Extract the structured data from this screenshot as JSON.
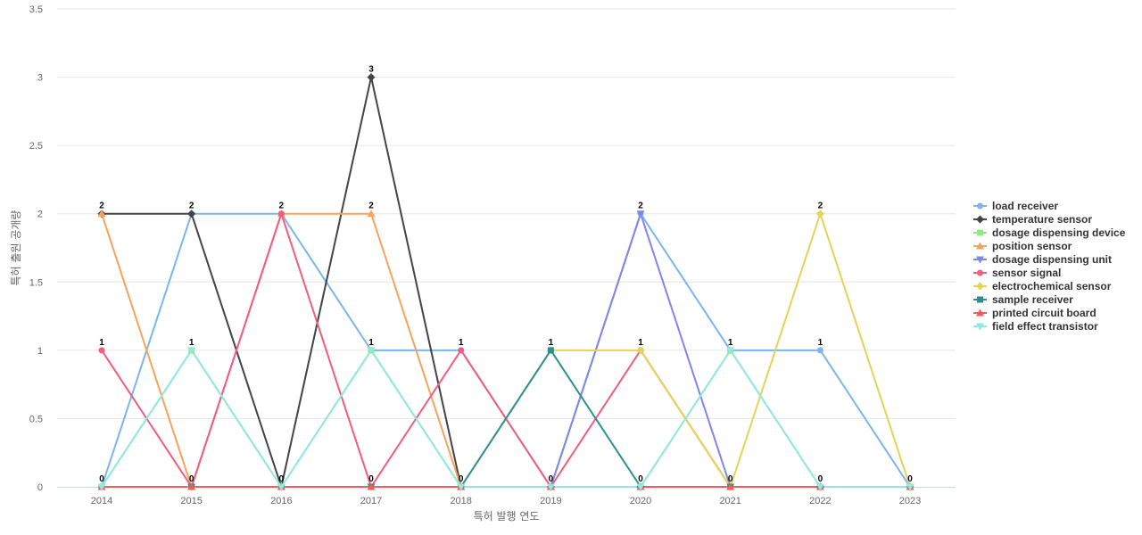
{
  "chart_data": {
    "type": "line",
    "xlabel": "특허 발행 연도",
    "ylabel": "특허 출원 공개량",
    "ylim": [
      0,
      3.5
    ],
    "yticks": [
      "0",
      "0.5",
      "1",
      "1.5",
      "2",
      "2.5",
      "3",
      "3.5"
    ],
    "grid": true,
    "legend_position": "right",
    "data_labels": true,
    "categories": [
      "2014",
      "2015",
      "2016",
      "2017",
      "2018",
      "2019",
      "2020",
      "2021",
      "2022",
      "2023"
    ],
    "series": [
      {
        "name": "load receiver",
        "color": "#7cb5ec",
        "marker": "circle",
        "values": [
          0,
          2,
          2,
          1,
          1,
          0,
          2,
          1,
          1,
          0
        ]
      },
      {
        "name": "temperature sensor",
        "color": "#434348",
        "marker": "diamond",
        "values": [
          2,
          2,
          0,
          3,
          0,
          0,
          0,
          0,
          0,
          0
        ]
      },
      {
        "name": "dosage dispensing device",
        "color": "#90ed7d",
        "marker": "square",
        "values": [
          0,
          1,
          0,
          1,
          0,
          0,
          0,
          1,
          0,
          0
        ]
      },
      {
        "name": "position sensor",
        "color": "#f7a35c",
        "marker": "triangle",
        "values": [
          2,
          0,
          2,
          2,
          0,
          0,
          0,
          0,
          0,
          0
        ]
      },
      {
        "name": "dosage dispensing unit",
        "color": "#8085e9",
        "marker": "triangle-down",
        "values": [
          0,
          0,
          0,
          0,
          0,
          0,
          2,
          0,
          0,
          0
        ]
      },
      {
        "name": "sensor signal",
        "color": "#f15c80",
        "marker": "circle",
        "values": [
          1,
          0,
          2,
          0,
          1,
          0,
          1,
          0,
          0,
          0
        ]
      },
      {
        "name": "electrochemical sensor",
        "color": "#e4d354",
        "marker": "diamond",
        "values": [
          0,
          0,
          0,
          0,
          0,
          1,
          1,
          0,
          2,
          0
        ]
      },
      {
        "name": "sample receiver",
        "color": "#2b908f",
        "marker": "square",
        "values": [
          0,
          0,
          0,
          0,
          0,
          1,
          0,
          0,
          0,
          0
        ]
      },
      {
        "name": "printed circuit board",
        "color": "#f45b5b",
        "marker": "triangle",
        "values": [
          0,
          0,
          0,
          0,
          0,
          0,
          0,
          0,
          0,
          0
        ]
      },
      {
        "name": "field effect transistor",
        "color": "#91e8e1",
        "marker": "triangle-down",
        "values": [
          0,
          1,
          0,
          1,
          0,
          0,
          0,
          1,
          0,
          0
        ]
      }
    ],
    "point_labels": [
      {
        "category": "2014",
        "y": 2,
        "text": "2"
      },
      {
        "category": "2014",
        "y": 1,
        "text": "1"
      },
      {
        "category": "2014",
        "y": 0,
        "text": "0"
      },
      {
        "category": "2015",
        "y": 2,
        "text": "2"
      },
      {
        "category": "2015",
        "y": 1,
        "text": "1"
      },
      {
        "category": "2015",
        "y": 0,
        "text": "0"
      },
      {
        "category": "2016",
        "y": 2,
        "text": "2"
      },
      {
        "category": "2016",
        "y": 0,
        "text": "0"
      },
      {
        "category": "2017",
        "y": 3,
        "text": "3"
      },
      {
        "category": "2017",
        "y": 2,
        "text": "2"
      },
      {
        "category": "2017",
        "y": 1,
        "text": "1"
      },
      {
        "category": "2017",
        "y": 0,
        "text": "0"
      },
      {
        "category": "2018",
        "y": 1,
        "text": "1"
      },
      {
        "category": "2018",
        "y": 0,
        "text": "0"
      },
      {
        "category": "2019",
        "y": 1,
        "text": "1"
      },
      {
        "category": "2019",
        "y": 0,
        "text": "0"
      },
      {
        "category": "2020",
        "y": 2,
        "text": "2"
      },
      {
        "category": "2020",
        "y": 1,
        "text": "1"
      },
      {
        "category": "2020",
        "y": 0,
        "text": "0"
      },
      {
        "category": "2021",
        "y": 1,
        "text": "1"
      },
      {
        "category": "2021",
        "y": 0,
        "text": "0"
      },
      {
        "category": "2022",
        "y": 2,
        "text": "2"
      },
      {
        "category": "2022",
        "y": 1,
        "text": "1"
      },
      {
        "category": "2022",
        "y": 0,
        "text": "0"
      },
      {
        "category": "2023",
        "y": 0,
        "text": "0"
      }
    ]
  }
}
